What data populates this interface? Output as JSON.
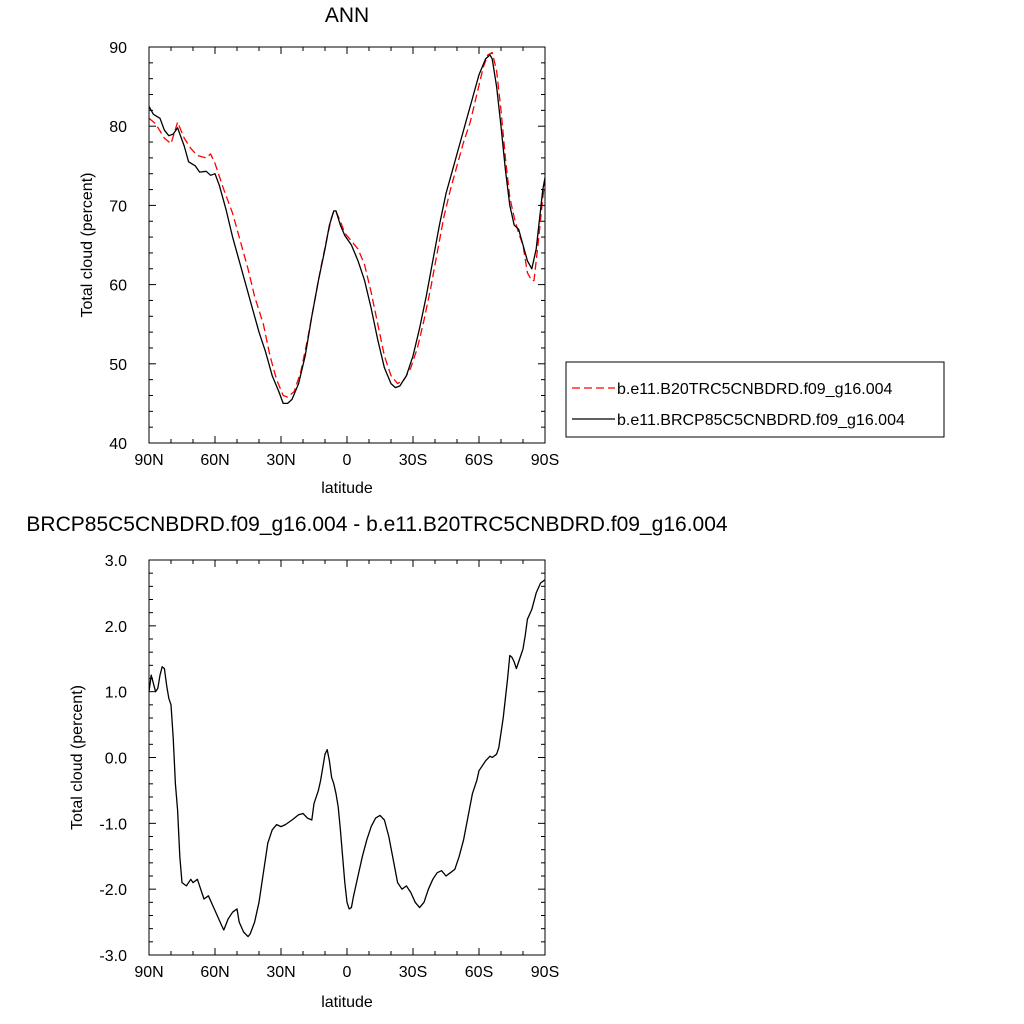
{
  "chart_data": [
    {
      "type": "line",
      "title": "ANN",
      "xlabel": "latitude",
      "ylabel": "Total cloud (percent)",
      "xlim": [
        90,
        -90
      ],
      "ylim": [
        40,
        90
      ],
      "x_ticks": [
        {
          "value": 90,
          "label": "90N"
        },
        {
          "value": 60,
          "label": "60N"
        },
        {
          "value": 30,
          "label": "30N"
        },
        {
          "value": 0,
          "label": "0"
        },
        {
          "value": -30,
          "label": "30S"
        },
        {
          "value": -60,
          "label": "60S"
        },
        {
          "value": -90,
          "label": "90S"
        }
      ],
      "y_ticks": [
        {
          "value": 40,
          "label": "40"
        },
        {
          "value": 50,
          "label": "50"
        },
        {
          "value": 60,
          "label": "60"
        },
        {
          "value": 70,
          "label": "70"
        },
        {
          "value": 80,
          "label": "80"
        },
        {
          "value": 90,
          "label": "90"
        }
      ],
      "legend_position": "right",
      "series": [
        {
          "name": "b.e11.B20TRC5CNBDRD.f09_g16.004",
          "color": "#ff0000",
          "dash": "dashed",
          "points": [
            [
              90,
              81
            ],
            [
              87,
              80.3
            ],
            [
              83,
              78.5
            ],
            [
              80,
              77.8
            ],
            [
              77,
              80.5
            ],
            [
              74,
              78.5
            ],
            [
              71,
              77.2
            ],
            [
              68,
              76.3
            ],
            [
              64,
              76
            ],
            [
              62,
              76.5
            ],
            [
              60,
              75.3
            ],
            [
              56,
              72
            ],
            [
              52,
              69
            ],
            [
              48,
              65
            ],
            [
              45,
              62
            ],
            [
              42,
              58.5
            ],
            [
              38,
              55
            ],
            [
              35,
              51
            ],
            [
              32,
              48
            ],
            [
              29,
              46
            ],
            [
              27,
              45.8
            ],
            [
              24,
              46.5
            ],
            [
              21,
              49
            ],
            [
              18,
              53
            ],
            [
              15,
              57.5
            ],
            [
              12,
              62
            ],
            [
              9,
              66
            ],
            [
              7,
              68.5
            ],
            [
              6,
              69.3
            ],
            [
              5,
              69.2
            ],
            [
              3,
              68
            ],
            [
              1,
              66.5
            ],
            [
              -2,
              65.5
            ],
            [
              -5,
              64.5
            ],
            [
              -8,
              62.5
            ],
            [
              -11,
              59
            ],
            [
              -14,
              55
            ],
            [
              -17,
              51
            ],
            [
              -20,
              48.5
            ],
            [
              -23,
              47.5
            ],
            [
              -26,
              48
            ],
            [
              -29,
              49.5
            ],
            [
              -32,
              52
            ],
            [
              -35,
              55.5
            ],
            [
              -38,
              59.5
            ],
            [
              -41,
              64
            ],
            [
              -44,
              68.5
            ],
            [
              -47,
              72
            ],
            [
              -50,
              75
            ],
            [
              -53,
              78
            ],
            [
              -56,
              80.5
            ],
            [
              -59,
              84
            ],
            [
              -62,
              87.5
            ],
            [
              -64,
              89
            ],
            [
              -66,
              89.3
            ],
            [
              -68,
              87
            ],
            [
              -70,
              82
            ],
            [
              -72,
              76
            ],
            [
              -74,
              71
            ],
            [
              -76,
              68.5
            ],
            [
              -78,
              66.5
            ],
            [
              -80,
              65
            ],
            [
              -82,
              61.5
            ],
            [
              -84,
              60.5
            ],
            [
              -85,
              60.5
            ],
            [
              -87,
              65.5
            ],
            [
              -89,
              71
            ],
            [
              -90,
              73
            ]
          ]
        },
        {
          "name": "b.e11.BRCP85C5CNBDRD.f09_g16.004",
          "color": "#000000",
          "dash": "solid",
          "points": [
            [
              90,
              82.5
            ],
            [
              88,
              81.5
            ],
            [
              85,
              81
            ],
            [
              83,
              79.5
            ],
            [
              81,
              78.8
            ],
            [
              79,
              79
            ],
            [
              77,
              79.8
            ],
            [
              74,
              77.5
            ],
            [
              72,
              75.5
            ],
            [
              69,
              75
            ],
            [
              67,
              74.2
            ],
            [
              64,
              74.3
            ],
            [
              62,
              73.8
            ],
            [
              60,
              74
            ],
            [
              58,
              72.5
            ],
            [
              55,
              69.5
            ],
            [
              52,
              66
            ],
            [
              49,
              63
            ],
            [
              46,
              60
            ],
            [
              43,
              57
            ],
            [
              40,
              54
            ],
            [
              37,
              51.5
            ],
            [
              34,
              48.5
            ],
            [
              31,
              46.5
            ],
            [
              29,
              45
            ],
            [
              27,
              45
            ],
            [
              25,
              45.5
            ],
            [
              22,
              47.5
            ],
            [
              19,
              51
            ],
            [
              16,
              56
            ],
            [
              13,
              60.5
            ],
            [
              10,
              64.5
            ],
            [
              8,
              67.5
            ],
            [
              6,
              69.3
            ],
            [
              5,
              69.3
            ],
            [
              3,
              67.5
            ],
            [
              1,
              66.2
            ],
            [
              -2,
              65
            ],
            [
              -5,
              63
            ],
            [
              -8,
              60.5
            ],
            [
              -11,
              57
            ],
            [
              -14,
              53
            ],
            [
              -17,
              49.5
            ],
            [
              -20,
              47.5
            ],
            [
              -22,
              47
            ],
            [
              -24,
              47.2
            ],
            [
              -27,
              48.5
            ],
            [
              -30,
              51
            ],
            [
              -33,
              54.5
            ],
            [
              -36,
              58.5
            ],
            [
              -39,
              63
            ],
            [
              -42,
              67.5
            ],
            [
              -45,
              71.5
            ],
            [
              -48,
              74.5
            ],
            [
              -51,
              77.5
            ],
            [
              -54,
              80.5
            ],
            [
              -57,
              83.5
            ],
            [
              -60,
              86.5
            ],
            [
              -63,
              88.5
            ],
            [
              -65,
              89
            ],
            [
              -66,
              88.5
            ],
            [
              -68,
              85
            ],
            [
              -70,
              80
            ],
            [
              -72,
              74.5
            ],
            [
              -74,
              70
            ],
            [
              -76,
              67.5
            ],
            [
              -78,
              67
            ],
            [
              -80,
              65
            ],
            [
              -82,
              63
            ],
            [
              -84,
              62
            ],
            [
              -86,
              64.5
            ],
            [
              -88,
              69.5
            ],
            [
              -89,
              72
            ],
            [
              -90,
              73.5
            ]
          ]
        }
      ]
    },
    {
      "type": "line",
      "title": "BRCP85C5CNBDRD.f09_g16.004 - b.e11.B20TRC5CNBDRD.f09_g16.004",
      "xlabel": "latitude",
      "ylabel": "Total cloud (percent)",
      "xlim": [
        90,
        -90
      ],
      "ylim": [
        -3.0,
        3.0
      ],
      "x_ticks": [
        {
          "value": 90,
          "label": "90N"
        },
        {
          "value": 60,
          "label": "60N"
        },
        {
          "value": 30,
          "label": "30N"
        },
        {
          "value": 0,
          "label": "0"
        },
        {
          "value": -30,
          "label": "30S"
        },
        {
          "value": -60,
          "label": "60S"
        },
        {
          "value": -90,
          "label": "90S"
        }
      ],
      "y_ticks": [
        {
          "value": -3.0,
          "label": "-3.0"
        },
        {
          "value": -2.0,
          "label": "-2.0"
        },
        {
          "value": -1.0,
          "label": "-1.0"
        },
        {
          "value": 0.0,
          "label": "0.0"
        },
        {
          "value": 1.0,
          "label": "1.0"
        },
        {
          "value": 2.0,
          "label": "2.0"
        },
        {
          "value": 3.0,
          "label": "3.0"
        }
      ],
      "series": [
        {
          "color": "#000000",
          "dash": "solid",
          "points": [
            [
              90,
              1.0
            ],
            [
              89,
              1.25
            ],
            [
              87,
              1.0
            ],
            [
              86,
              1.05
            ],
            [
              85,
              1.25
            ],
            [
              84,
              1.38
            ],
            [
              83,
              1.35
            ],
            [
              82,
              1.1
            ],
            [
              81,
              0.9
            ],
            [
              80,
              0.8
            ],
            [
              79,
              0.3
            ],
            [
              78,
              -0.4
            ],
            [
              77,
              -0.8
            ],
            [
              76,
              -1.5
            ],
            [
              75,
              -1.9
            ],
            [
              73,
              -1.95
            ],
            [
              71,
              -1.85
            ],
            [
              70,
              -1.9
            ],
            [
              68,
              -1.85
            ],
            [
              67,
              -1.95
            ],
            [
              65,
              -2.15
            ],
            [
              63,
              -2.1
            ],
            [
              61,
              -2.25
            ],
            [
              59,
              -2.4
            ],
            [
              57,
              -2.55
            ],
            [
              56,
              -2.62
            ],
            [
              54,
              -2.45
            ],
            [
              52,
              -2.35
            ],
            [
              50,
              -2.3
            ],
            [
              49,
              -2.5
            ],
            [
              47,
              -2.65
            ],
            [
              45,
              -2.72
            ],
            [
              44,
              -2.68
            ],
            [
              42,
              -2.5
            ],
            [
              40,
              -2.2
            ],
            [
              38,
              -1.75
            ],
            [
              36,
              -1.3
            ],
            [
              34,
              -1.1
            ],
            [
              32,
              -1.02
            ],
            [
              30,
              -1.05
            ],
            [
              28,
              -1.02
            ],
            [
              25,
              -0.95
            ],
            [
              22,
              -0.87
            ],
            [
              20,
              -0.85
            ],
            [
              18,
              -0.92
            ],
            [
              16,
              -0.95
            ],
            [
              15,
              -0.7
            ],
            [
              13,
              -0.5
            ],
            [
              12,
              -0.35
            ],
            [
              11,
              -0.15
            ],
            [
              10,
              0.05
            ],
            [
              9,
              0.12
            ],
            [
              8,
              -0.05
            ],
            [
              7,
              -0.3
            ],
            [
              6,
              -0.4
            ],
            [
              5,
              -0.55
            ],
            [
              4,
              -0.75
            ],
            [
              3,
              -1.1
            ],
            [
              2,
              -1.5
            ],
            [
              1,
              -1.9
            ],
            [
              0,
              -2.2
            ],
            [
              -1,
              -2.3
            ],
            [
              -2,
              -2.28
            ],
            [
              -3,
              -2.1
            ],
            [
              -5,
              -1.8
            ],
            [
              -7,
              -1.5
            ],
            [
              -9,
              -1.25
            ],
            [
              -11,
              -1.05
            ],
            [
              -13,
              -0.92
            ],
            [
              -15,
              -0.88
            ],
            [
              -17,
              -0.95
            ],
            [
              -19,
              -1.2
            ],
            [
              -21,
              -1.55
            ],
            [
              -23,
              -1.9
            ],
            [
              -25,
              -2.0
            ],
            [
              -27,
              -1.95
            ],
            [
              -29,
              -2.05
            ],
            [
              -31,
              -2.2
            ],
            [
              -33,
              -2.28
            ],
            [
              -35,
              -2.2
            ],
            [
              -37,
              -2.0
            ],
            [
              -39,
              -1.85
            ],
            [
              -41,
              -1.75
            ],
            [
              -43,
              -1.72
            ],
            [
              -45,
              -1.8
            ],
            [
              -47,
              -1.75
            ],
            [
              -49,
              -1.7
            ],
            [
              -51,
              -1.5
            ],
            [
              -53,
              -1.25
            ],
            [
              -55,
              -0.9
            ],
            [
              -57,
              -0.55
            ],
            [
              -59,
              -0.35
            ],
            [
              -60,
              -0.2
            ],
            [
              -62,
              -0.1
            ],
            [
              -63,
              -0.05
            ],
            [
              -65,
              0.02
            ],
            [
              -66,
              0.0
            ],
            [
              -68,
              0.05
            ],
            [
              -69,
              0.15
            ],
            [
              -71,
              0.6
            ],
            [
              -73,
              1.2
            ],
            [
              -74,
              1.55
            ],
            [
              -75,
              1.52
            ],
            [
              -76,
              1.45
            ],
            [
              -77,
              1.35
            ],
            [
              -78,
              1.45
            ],
            [
              -79,
              1.55
            ],
            [
              -80,
              1.65
            ],
            [
              -81,
              1.85
            ],
            [
              -82,
              2.1
            ],
            [
              -84,
              2.25
            ],
            [
              -86,
              2.5
            ],
            [
              -88,
              2.65
            ],
            [
              -90,
              2.7
            ]
          ]
        }
      ]
    }
  ]
}
